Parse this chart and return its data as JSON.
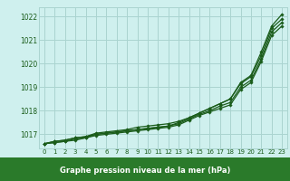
{
  "xlabel": "Graphe pression niveau de la mer (hPa)",
  "xlim": [
    -0.5,
    23.5
  ],
  "ylim": [
    1016.4,
    1022.4
  ],
  "yticks": [
    1017,
    1018,
    1019,
    1020,
    1021,
    1022
  ],
  "xticks": [
    0,
    1,
    2,
    3,
    4,
    5,
    6,
    7,
    8,
    9,
    10,
    11,
    12,
    13,
    14,
    15,
    16,
    17,
    18,
    19,
    20,
    21,
    22,
    23
  ],
  "bg_color": "#cff0ee",
  "grid_color": "#aad4d0",
  "line_color": "#1a5c1a",
  "label_color": "#1a5c1a",
  "bottom_bar_color": "#2a7a2a",
  "series": [
    [
      1016.6,
      1016.7,
      1016.75,
      1016.85,
      1016.9,
      1017.0,
      1017.05,
      1017.1,
      1017.15,
      1017.2,
      1017.25,
      1017.3,
      1017.35,
      1017.5,
      1017.7,
      1017.9,
      1018.1,
      1018.3,
      1018.5,
      1019.2,
      1019.5,
      1020.5,
      1021.6,
      1022.1
    ],
    [
      1016.6,
      1016.7,
      1016.75,
      1016.85,
      1016.9,
      1017.05,
      1017.1,
      1017.15,
      1017.2,
      1017.3,
      1017.35,
      1017.4,
      1017.45,
      1017.55,
      1017.7,
      1017.9,
      1018.1,
      1018.3,
      1018.5,
      1019.15,
      1019.45,
      1020.35,
      1021.5,
      1021.9
    ],
    [
      1016.6,
      1016.65,
      1016.7,
      1016.8,
      1016.85,
      1017.0,
      1017.05,
      1017.1,
      1017.15,
      1017.2,
      1017.25,
      1017.3,
      1017.35,
      1017.45,
      1017.65,
      1017.85,
      1018.0,
      1018.2,
      1018.35,
      1019.0,
      1019.3,
      1020.2,
      1021.35,
      1021.75
    ],
    [
      1016.6,
      1016.65,
      1016.7,
      1016.75,
      1016.85,
      1016.95,
      1017.0,
      1017.05,
      1017.1,
      1017.15,
      1017.2,
      1017.25,
      1017.3,
      1017.4,
      1017.6,
      1017.8,
      1017.95,
      1018.1,
      1018.25,
      1018.9,
      1019.2,
      1020.1,
      1021.2,
      1021.6
    ]
  ]
}
